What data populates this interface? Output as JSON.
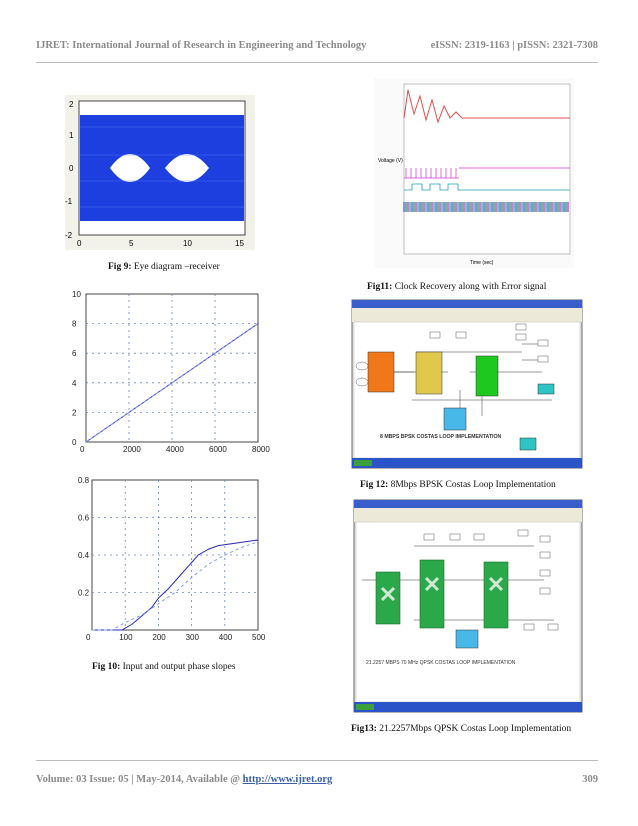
{
  "header": {
    "journal": "IJRET: International Journal of Research in Engineering and Technology",
    "issn": "eISSN: 2319-1163 | pISSN: 2321-7308"
  },
  "figures": {
    "fig9": {
      "label": "Fig 9:",
      "text": " Eye diagram –receiver",
      "yticks": [
        "2",
        "1",
        "0",
        "-1",
        "-2"
      ],
      "xticks": [
        "0",
        "5",
        "10",
        "15"
      ]
    },
    "fig10": {
      "label": "Fig 10:",
      "text": " Input and output phase slopes",
      "top_yticks": [
        "10",
        "8",
        "6",
        "4",
        "2",
        "0"
      ],
      "top_xticks": [
        "0",
        "2000",
        "4000",
        "6000",
        "8000"
      ],
      "bottom_yticks": [
        "0.8",
        "0.6",
        "0.4",
        "0.2"
      ],
      "bottom_xticks": [
        "0",
        "100",
        "200",
        "300",
        "400",
        "500"
      ]
    },
    "fig11": {
      "label": "Fig11:",
      "text": " Clock Recovery along with Error signal",
      "ylabel": "Voltage (V)",
      "xlabel": "Time (sec)"
    },
    "fig12": {
      "label": "Fig 12:",
      "text": " 8Mbps BPSK Costas Loop Implementation",
      "banner": "8 MBPS BPSK COSTAS LOOP IMPLEMENTATION"
    },
    "fig13": {
      "label": "Fig13:",
      "text": " 21.2257Mbps QPSK Costas Loop Implementation",
      "banner": "21.2257 MBPS 70 MHz QPSK COSTAS LOOP IMPLEMENTATION"
    }
  },
  "chart_data": [
    {
      "type": "line",
      "title": "",
      "xlabel": "",
      "ylabel": "",
      "xlim": [
        0,
        8000
      ],
      "ylim": [
        0,
        10
      ],
      "series": [
        {
          "x": [
            0,
            8000
          ],
          "y": [
            0,
            8
          ]
        },
        {
          "x": [
            0,
            8000
          ],
          "y": [
            0,
            8
          ]
        }
      ]
    },
    {
      "type": "line",
      "title": "",
      "xlabel": "",
      "ylabel": "",
      "xlim": [
        0,
        500
      ],
      "ylim": [
        0,
        0.8
      ],
      "series": [
        {
          "x": [
            0,
            50,
            90,
            120,
            140,
            160,
            180,
            200,
            230,
            260,
            290,
            320,
            350,
            380,
            420,
            460,
            500
          ],
          "y": [
            0,
            0,
            0,
            0.03,
            0.06,
            0.09,
            0.12,
            0.17,
            0.22,
            0.28,
            0.34,
            0.4,
            0.43,
            0.45,
            0.46,
            0.47,
            0.48
          ]
        },
        {
          "x": [
            0,
            60,
            100,
            150,
            200,
            250,
            300,
            350,
            400,
            450,
            500
          ],
          "y": [
            0,
            0,
            0.04,
            0.08,
            0.14,
            0.2,
            0.28,
            0.35,
            0.4,
            0.44,
            0.47
          ]
        }
      ]
    }
  ],
  "footer": {
    "volume": "Volume: 03 Issue: 05 | May-2014, Available @ ",
    "link": "http://www.ijret.org",
    "page": "309"
  }
}
